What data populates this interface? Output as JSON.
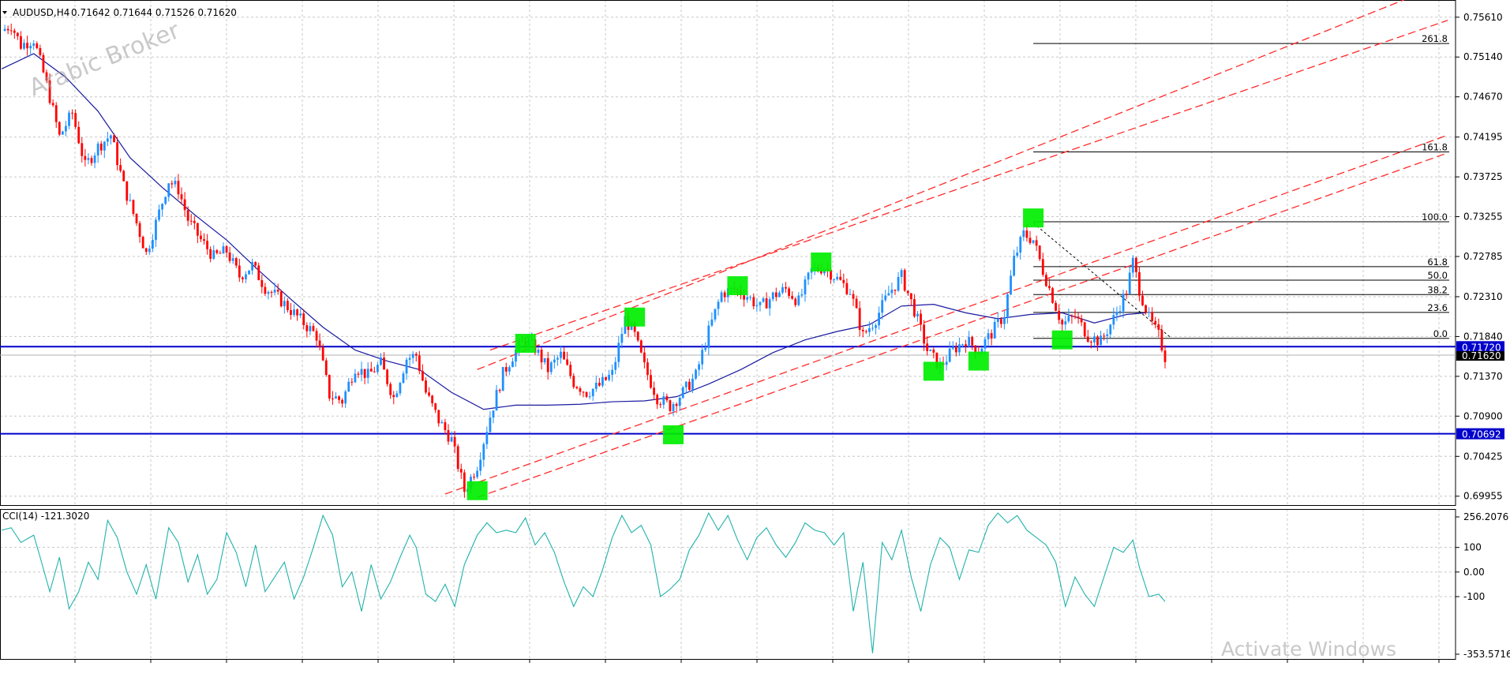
{
  "colors": {
    "bull": "#1e90ff",
    "bear": "#ff0000",
    "ma": "#1a1aa0",
    "channel": "#ff2a2a",
    "hline": "#0000cc",
    "fib": "#000000",
    "marker": "#00ee00",
    "cci": "#20b2aa",
    "grid": "#c8c8c8",
    "price_badge": "#000000"
  },
  "header": {
    "symbol_label": "AUDUSD,H4",
    "ohlc": "0.71642 0.71644 0.71526 0.71620",
    "indicator_label": "CCI(14) -121.3020"
  },
  "watermark": "Arabic Broker",
  "os_watermark": "Activate Windows",
  "horizontal_lines": [
    {
      "label": "0.71720",
      "value": 0.7172
    },
    {
      "label": "0.70692",
      "value": 0.70692
    }
  ],
  "current_price": {
    "label": "0.71620",
    "value": 0.7162
  },
  "chart_data": [
    {
      "type": "candlestick",
      "title": "AUDUSD,H4",
      "y_ticks": [
        "0.75610",
        "0.75140",
        "0.74670",
        "0.74195",
        "0.73725",
        "0.73255",
        "0.72785",
        "0.72310",
        "0.71840",
        "0.71370",
        "0.70900",
        "0.70425",
        "0.69955"
      ],
      "ylim": [
        0.6985,
        0.7572
      ],
      "grid": true,
      "price_path": [
        [
          0,
          0.7545
        ],
        [
          3,
          0.7552
        ],
        [
          6,
          0.7528
        ],
        [
          10,
          0.7535
        ],
        [
          14,
          0.7482
        ],
        [
          18,
          0.742
        ],
        [
          22,
          0.7448
        ],
        [
          26,
          0.7385
        ],
        [
          30,
          0.7408
        ],
        [
          34,
          0.7422
        ],
        [
          38,
          0.7362
        ],
        [
          42,
          0.7318
        ],
        [
          45,
          0.7282
        ],
        [
          48,
          0.7318
        ],
        [
          52,
          0.7368
        ],
        [
          55,
          0.7358
        ],
        [
          58,
          0.7322
        ],
        [
          62,
          0.7298
        ],
        [
          66,
          0.7278
        ],
        [
          70,
          0.7285
        ],
        [
          74,
          0.7255
        ],
        [
          78,
          0.7268
        ],
        [
          82,
          0.7242
        ],
        [
          86,
          0.723
        ],
        [
          90,
          0.7215
        ],
        [
          94,
          0.72
        ],
        [
          98,
          0.7185
        ],
        [
          102,
          0.7115
        ],
        [
          106,
          0.7108
        ],
        [
          110,
          0.7148
        ],
        [
          114,
          0.7138
        ],
        [
          118,
          0.7152
        ],
        [
          122,
          0.7112
        ],
        [
          126,
          0.7158
        ],
        [
          129,
          0.7162
        ],
        [
          132,
          0.7118
        ],
        [
          136,
          0.7085
        ],
        [
          140,
          0.7062
        ],
        [
          144,
          0.7002
        ],
        [
          148,
          0.7032
        ],
        [
          152,
          0.709
        ],
        [
          156,
          0.714
        ],
        [
          160,
          0.7168
        ],
        [
          163,
          0.718
        ],
        [
          166,
          0.717
        ],
        [
          170,
          0.7145
        ],
        [
          174,
          0.7162
        ],
        [
          178,
          0.713
        ],
        [
          182,
          0.7118
        ],
        [
          186,
          0.7126
        ],
        [
          190,
          0.714
        ],
        [
          194,
          0.7205
        ],
        [
          197,
          0.7185
        ],
        [
          200,
          0.7148
        ],
        [
          204,
          0.7112
        ],
        [
          208,
          0.7102
        ],
        [
          212,
          0.7118
        ],
        [
          216,
          0.7138
        ],
        [
          220,
          0.719
        ],
        [
          224,
          0.7235
        ],
        [
          228,
          0.724
        ],
        [
          232,
          0.7232
        ],
        [
          236,
          0.7218
        ],
        [
          240,
          0.7232
        ],
        [
          244,
          0.724
        ],
        [
          248,
          0.7225
        ],
        [
          252,
          0.7262
        ],
        [
          256,
          0.7266
        ],
        [
          260,
          0.7252
        ],
        [
          264,
          0.7238
        ],
        [
          268,
          0.7185
        ],
        [
          272,
          0.7205
        ],
        [
          276,
          0.7235
        ],
        [
          280,
          0.7255
        ],
        [
          284,
          0.7215
        ],
        [
          288,
          0.7168
        ],
        [
          292,
          0.7148
        ],
        [
          296,
          0.7168
        ],
        [
          300,
          0.718
        ],
        [
          304,
          0.7168
        ],
        [
          308,
          0.7188
        ],
        [
          312,
          0.721
        ],
        [
          315,
          0.7275
        ],
        [
          318,
          0.7305
        ],
        [
          321,
          0.7298
        ],
        [
          324,
          0.7262
        ],
        [
          327,
          0.723
        ],
        [
          330,
          0.7198
        ],
        [
          334,
          0.7208
        ],
        [
          338,
          0.7185
        ],
        [
          342,
          0.7178
        ],
        [
          346,
          0.7205
        ],
        [
          350,
          0.7238
        ],
        [
          352,
          0.7272
        ],
        [
          354,
          0.724
        ],
        [
          357,
          0.7205
        ],
        [
          360,
          0.7185
        ],
        [
          362,
          0.716
        ]
      ],
      "moving_average": [
        [
          0,
          0.75
        ],
        [
          10,
          0.7518
        ],
        [
          20,
          0.749
        ],
        [
          30,
          0.745
        ],
        [
          40,
          0.7395
        ],
        [
          50,
          0.736
        ],
        [
          60,
          0.7328
        ],
        [
          70,
          0.7298
        ],
        [
          80,
          0.7262
        ],
        [
          90,
          0.7228
        ],
        [
          100,
          0.7195
        ],
        [
          110,
          0.7168
        ],
        [
          120,
          0.7155
        ],
        [
          130,
          0.7145
        ],
        [
          140,
          0.7118
        ],
        [
          150,
          0.7098
        ],
        [
          160,
          0.7103
        ],
        [
          170,
          0.7103
        ],
        [
          180,
          0.7104
        ],
        [
          190,
          0.7107
        ],
        [
          200,
          0.7108
        ],
        [
          210,
          0.7113
        ],
        [
          220,
          0.7128
        ],
        [
          230,
          0.7145
        ],
        [
          240,
          0.7165
        ],
        [
          250,
          0.718
        ],
        [
          260,
          0.719
        ],
        [
          270,
          0.7198
        ],
        [
          280,
          0.722
        ],
        [
          290,
          0.7222
        ],
        [
          300,
          0.7212
        ],
        [
          310,
          0.7205
        ],
        [
          320,
          0.721
        ],
        [
          330,
          0.7212
        ],
        [
          340,
          0.72
        ],
        [
          350,
          0.721
        ],
        [
          356,
          0.7212
        ]
      ],
      "channel_lines": [
        {
          "x1": 138,
          "y1": 0.6998,
          "x2": 364,
          "y2": 0.7305
        },
        {
          "x1": 148,
          "y1": 0.6994,
          "x2": 364,
          "y2": 0.7285
        },
        {
          "x1": 148,
          "y1": 0.7145,
          "x2": 364,
          "y2": 0.7472
        },
        {
          "x1": 152,
          "y1": 0.7168,
          "x2": 364,
          "y2": 0.7445
        }
      ],
      "fib_retracement": {
        "levels": [
          {
            "label": "261.8",
            "value": 0.753
          },
          {
            "label": "161.8",
            "value": 0.7402
          },
          {
            "label": "100.0",
            "value": 0.73195
          },
          {
            "label": "61.8",
            "value": 0.72665
          },
          {
            "label": "50.0",
            "value": 0.72505
          },
          {
            "label": "38.2",
            "value": 0.72335
          },
          {
            "label": "23.6",
            "value": 0.72125
          },
          {
            "label": "0.0",
            "value": 0.71818
          }
        ],
        "swing": {
          "x1": 321,
          "y1": 0.7318,
          "x2": 364,
          "y2": 0.7182
        }
      },
      "markers": [
        {
          "x": 148,
          "y": 0.7002
        },
        {
          "x": 163,
          "y": 0.7176
        },
        {
          "x": 197,
          "y": 0.7207
        },
        {
          "x": 209,
          "y": 0.7068
        },
        {
          "x": 229,
          "y": 0.7244
        },
        {
          "x": 255,
          "y": 0.7272
        },
        {
          "x": 290,
          "y": 0.7143
        },
        {
          "x": 304,
          "y": 0.7155
        },
        {
          "x": 321,
          "y": 0.7324
        },
        {
          "x": 330,
          "y": 0.718
        }
      ]
    },
    {
      "type": "line",
      "title": "CCI(14)",
      "y_ticks": [
        "256.2076",
        "100",
        "0.00",
        "-100",
        "-353.5716"
      ],
      "ylim": [
        -353.5716,
        256.2076
      ],
      "grid": true,
      "values": [
        [
          0,
          170
        ],
        [
          3,
          180
        ],
        [
          6,
          120
        ],
        [
          10,
          150
        ],
        [
          12,
          60
        ],
        [
          15,
          -80
        ],
        [
          18,
          60
        ],
        [
          21,
          -150
        ],
        [
          24,
          -80
        ],
        [
          27,
          40
        ],
        [
          30,
          -30
        ],
        [
          33,
          210
        ],
        [
          36,
          140
        ],
        [
          39,
          0
        ],
        [
          42,
          -90
        ],
        [
          45,
          30
        ],
        [
          48,
          -110
        ],
        [
          52,
          180
        ],
        [
          55,
          120
        ],
        [
          58,
          -40
        ],
        [
          61,
          70
        ],
        [
          64,
          -90
        ],
        [
          67,
          -30
        ],
        [
          70,
          160
        ],
        [
          73,
          80
        ],
        [
          76,
          -60
        ],
        [
          79,
          110
        ],
        [
          82,
          -80
        ],
        [
          85,
          -20
        ],
        [
          88,
          40
        ],
        [
          91,
          -110
        ],
        [
          94,
          -20
        ],
        [
          97,
          100
        ],
        [
          100,
          230
        ],
        [
          103,
          150
        ],
        [
          106,
          -60
        ],
        [
          109,
          0
        ],
        [
          112,
          -160
        ],
        [
          115,
          30
        ],
        [
          118,
          -110
        ],
        [
          121,
          -40
        ],
        [
          124,
          60
        ],
        [
          127,
          150
        ],
        [
          129,
          100
        ],
        [
          132,
          -90
        ],
        [
          135,
          -120
        ],
        [
          138,
          -50
        ],
        [
          141,
          -140
        ],
        [
          144,
          30
        ],
        [
          148,
          150
        ],
        [
          151,
          200
        ],
        [
          154,
          160
        ],
        [
          157,
          170
        ],
        [
          160,
          160
        ],
        [
          163,
          220
        ],
        [
          166,
          110
        ],
        [
          169,
          160
        ],
        [
          172,
          80
        ],
        [
          175,
          -40
        ],
        [
          178,
          -140
        ],
        [
          181,
          -60
        ],
        [
          184,
          -100
        ],
        [
          187,
          10
        ],
        [
          190,
          140
        ],
        [
          193,
          230
        ],
        [
          196,
          160
        ],
        [
          199,
          190
        ],
        [
          202,
          110
        ],
        [
          205,
          -100
        ],
        [
          208,
          -70
        ],
        [
          211,
          -30
        ],
        [
          214,
          90
        ],
        [
          217,
          150
        ],
        [
          220,
          240
        ],
        [
          223,
          170
        ],
        [
          226,
          230
        ],
        [
          229,
          130
        ],
        [
          232,
          50
        ],
        [
          235,
          140
        ],
        [
          238,
          180
        ],
        [
          241,
          110
        ],
        [
          244,
          60
        ],
        [
          247,
          120
        ],
        [
          250,
          200
        ],
        [
          253,
          170
        ],
        [
          256,
          160
        ],
        [
          259,
          110
        ],
        [
          262,
          160
        ],
        [
          265,
          -160
        ],
        [
          268,
          40
        ],
        [
          271,
          -330
        ],
        [
          274,
          120
        ],
        [
          277,
          50
        ],
        [
          280,
          170
        ],
        [
          283,
          -20
        ],
        [
          286,
          -160
        ],
        [
          289,
          30
        ],
        [
          292,
          140
        ],
        [
          295,
          100
        ],
        [
          298,
          -30
        ],
        [
          301,
          90
        ],
        [
          304,
          80
        ],
        [
          307,
          190
        ],
        [
          310,
          240
        ],
        [
          313,
          200
        ],
        [
          316,
          230
        ],
        [
          319,
          170
        ],
        [
          322,
          140
        ],
        [
          325,
          110
        ],
        [
          328,
          40
        ],
        [
          331,
          -140
        ],
        [
          334,
          -20
        ],
        [
          337,
          -90
        ],
        [
          340,
          -140
        ],
        [
          343,
          -20
        ],
        [
          346,
          100
        ],
        [
          349,
          80
        ],
        [
          352,
          130
        ],
        [
          354,
          20
        ],
        [
          357,
          -100
        ],
        [
          360,
          -90
        ],
        [
          362,
          -120
        ]
      ]
    }
  ]
}
